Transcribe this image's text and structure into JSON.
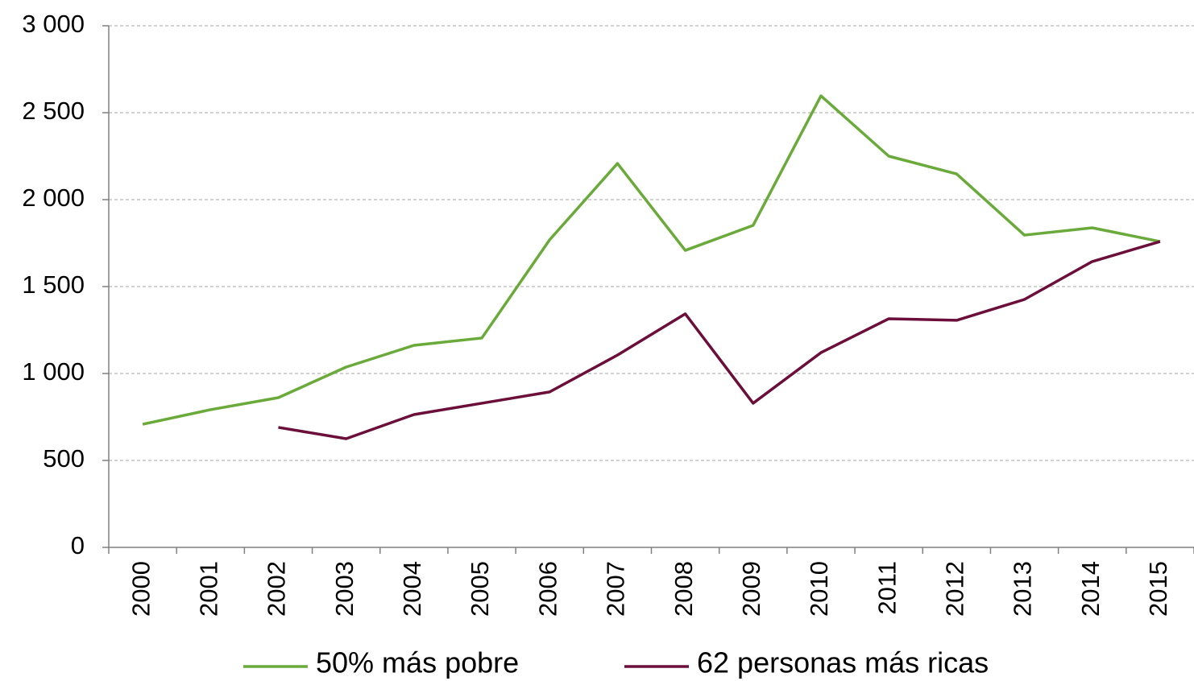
{
  "chart_data": {
    "type": "line",
    "categories": [
      "2000",
      "2001",
      "2002",
      "2003",
      "2004",
      "2005",
      "2006",
      "2007",
      "2008",
      "2009",
      "2010",
      "2011",
      "2012",
      "2013",
      "2014",
      "2015"
    ],
    "series": [
      {
        "name": "50% más pobre",
        "color": "#6aaa3a",
        "values": [
          708,
          792,
          861,
          1037,
          1162,
          1204,
          1769,
          2208,
          1708,
          1852,
          2597,
          2250,
          2148,
          1796,
          1838,
          1759
        ]
      },
      {
        "name": "62 personas más ricas",
        "color": "#6b0f3a",
        "values": [
          null,
          null,
          690,
          625,
          764,
          829,
          894,
          1106,
          1343,
          829,
          1120,
          1315,
          1306,
          1426,
          1644,
          1759
        ]
      }
    ],
    "ylim": [
      0,
      3000
    ],
    "yticks": [
      0,
      500,
      {
        "value": 1000,
        "label": "1 000"
      },
      {
        "value": 1500,
        "label": "1 500"
      },
      {
        "value": 2000,
        "label": "2 000"
      },
      {
        "value": 2500,
        "label": "2 500"
      },
      {
        "value": 3000,
        "label": "3 000"
      }
    ],
    "grid": true,
    "legend": "bottom"
  }
}
